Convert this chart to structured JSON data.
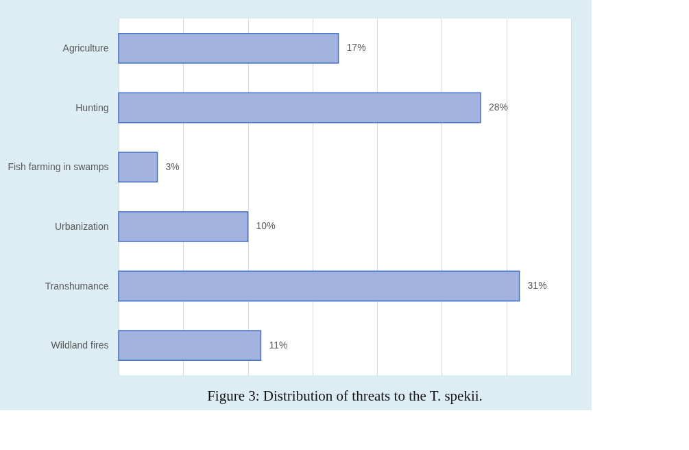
{
  "chart_data": {
    "type": "bar",
    "orientation": "horizontal",
    "title": "Figure 3: Distribution of threats to the T. spekii.",
    "categories": [
      "Agriculture",
      "Hunting",
      "Fish farming in swamps",
      "Urbanization",
      "Transhumance",
      "Wildland fires"
    ],
    "values": [
      17,
      28,
      3,
      10,
      31,
      11
    ],
    "value_labels": [
      "17%",
      "28%",
      "3%",
      "10%",
      "31%",
      "11%"
    ],
    "color": "#a3b3e0",
    "xlim": [
      0,
      35
    ],
    "xticks": [
      {
        "value": 0,
        "label": null
      },
      {
        "value": 5,
        "label": null
      },
      {
        "value": 10,
        "label": null
      },
      {
        "value": 15,
        "label": null
      },
      {
        "value": 20,
        "label": null
      },
      {
        "value": 25,
        "label": null
      },
      {
        "value": 30,
        "label": null
      },
      {
        "value": 35,
        "label": null
      }
    ],
    "tick_labels": "y",
    "grid": "x"
  }
}
